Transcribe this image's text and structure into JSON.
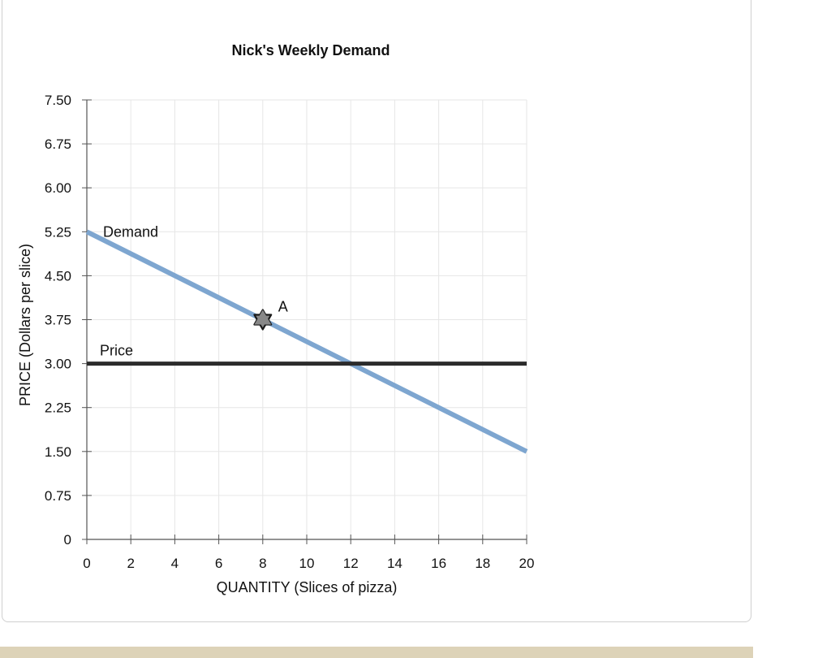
{
  "chart_data": {
    "type": "line",
    "title": "Nick's Weekly Demand",
    "xlabel": "QUANTITY (Slices of pizza)",
    "ylabel": "PRICE (Dollars per slice)",
    "xlim": [
      0,
      20
    ],
    "ylim": [
      0,
      7.5
    ],
    "x_ticks": [
      0,
      2,
      4,
      6,
      8,
      10,
      12,
      14,
      16,
      18,
      20
    ],
    "x_tick_labels": [
      "0",
      "2",
      "4",
      "6",
      "8",
      "10",
      "12",
      "14",
      "16",
      "18",
      "20"
    ],
    "y_ticks": [
      0,
      0.75,
      1.5,
      2.25,
      3.0,
      3.75,
      4.5,
      5.25,
      6.0,
      6.75,
      7.5
    ],
    "y_tick_labels": [
      "0",
      "0.75",
      "1.50",
      "2.25",
      "3.00",
      "3.75",
      "4.50",
      "5.25",
      "6.00",
      "6.75",
      "7.50"
    ],
    "grid": true,
    "series": [
      {
        "name": "Demand",
        "color": "#7ea6d0",
        "points": [
          [
            0,
            5.25
          ],
          [
            20,
            1.5
          ]
        ]
      },
      {
        "name": "Price",
        "color": "#2b2b2b",
        "points": [
          [
            0,
            3.0
          ],
          [
            20,
            3.0
          ]
        ]
      }
    ],
    "annotations": [
      {
        "label": "A",
        "x": 8,
        "y": 3.75,
        "marker": "star",
        "color": "#333333"
      }
    ]
  }
}
